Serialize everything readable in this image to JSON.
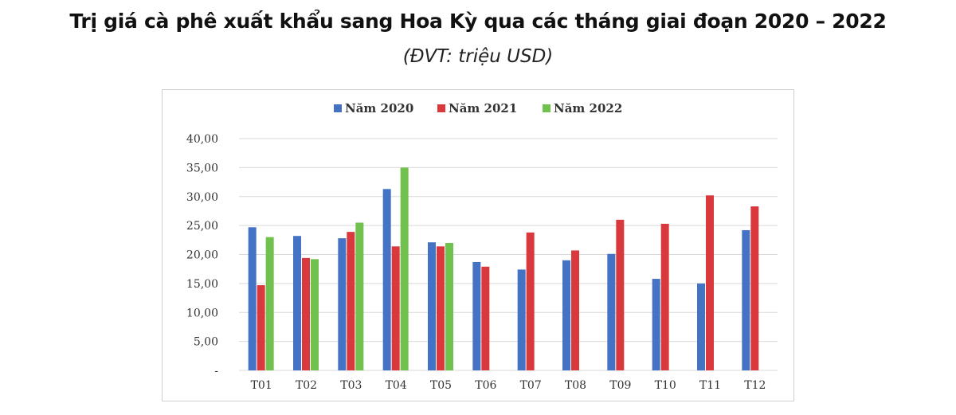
{
  "header": {
    "title": "Trị giá cà phê xuất khẩu sang Hoa Kỳ qua các tháng giai đoạn 2020 – 2022",
    "subtitle": "(ĐVT: triệu USD)"
  },
  "chart_data": {
    "type": "bar",
    "title": "Trị giá cà phê xuất khẩu sang Hoa Kỳ qua các tháng giai đoạn 2020 – 2022",
    "subtitle": "(ĐVT: triệu USD)",
    "xlabel": "",
    "ylabel": "",
    "categories": [
      "T01",
      "T02",
      "T03",
      "T04",
      "T05",
      "T06",
      "T07",
      "T08",
      "T09",
      "T10",
      "T11",
      "T12"
    ],
    "series": [
      {
        "name": "Năm 2020",
        "color": "#4472C4",
        "values": [
          24.7,
          23.2,
          22.8,
          31.3,
          22.1,
          18.7,
          17.4,
          19.0,
          20.1,
          15.8,
          15.0,
          24.2
        ]
      },
      {
        "name": "Năm 2021",
        "color": "#D9383C",
        "values": [
          14.7,
          19.4,
          23.9,
          21.4,
          21.4,
          17.9,
          23.8,
          20.7,
          26.0,
          25.3,
          30.2,
          28.3
        ]
      },
      {
        "name": "Năm 2022",
        "color": "#70C14E",
        "values": [
          23.0,
          19.2,
          25.5,
          35.0,
          22.0,
          null,
          null,
          null,
          null,
          null,
          null,
          null
        ]
      }
    ],
    "ylim": [
      0,
      40
    ],
    "yticks": [
      "-",
      "5,00",
      "10,00",
      "15,00",
      "20,00",
      "25,00",
      "30,00",
      "35,00",
      "40,00"
    ],
    "grid": true,
    "legend_position": "top-center"
  }
}
